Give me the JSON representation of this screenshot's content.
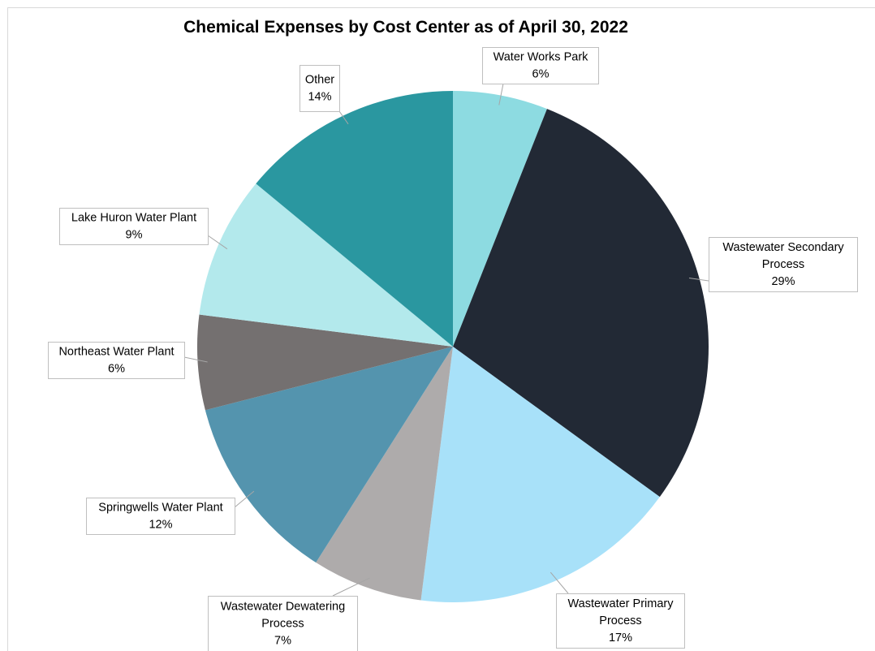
{
  "chart_data": {
    "type": "pie",
    "title": "Chemical Expenses by Cost Center as of April 30, 2022",
    "slices": [
      {
        "label": "Water Works Park",
        "label_lines": [
          "Water Works Park"
        ],
        "value": 6,
        "value_label": "6%",
        "color": "#8ddbe1"
      },
      {
        "label": "Wastewater Secondary Process",
        "label_lines": [
          "Wastewater Secondary",
          "Process"
        ],
        "value": 29,
        "value_label": "29%",
        "color": "#222935"
      },
      {
        "label": "Wastewater Primary Process",
        "label_lines": [
          "Wastewater Primary",
          "Process"
        ],
        "value": 17,
        "value_label": "17%",
        "color": "#a8e1f9"
      },
      {
        "label": "Wastewater Dewatering Process",
        "label_lines": [
          "Wastewater Dewatering",
          "Process"
        ],
        "value": 7,
        "value_label": "7%",
        "color": "#aeabab"
      },
      {
        "label": "Springwells Water Plant",
        "label_lines": [
          "Springwells Water Plant"
        ],
        "value": 12,
        "value_label": "12%",
        "color": "#5494ae"
      },
      {
        "label": "Northeast Water Plant",
        "label_lines": [
          "Northeast Water Plant"
        ],
        "value": 6,
        "value_label": "6%",
        "color": "#747070"
      },
      {
        "label": "Lake Huron Water Plant",
        "label_lines": [
          "Lake Huron Water Plant"
        ],
        "value": 9,
        "value_label": "9%",
        "color": "#b3e9ec"
      },
      {
        "label": "Other",
        "label_lines": [
          "Other"
        ],
        "value": 14,
        "value_label": "14%",
        "color": "#2a97a0"
      }
    ],
    "legend": "none",
    "data_labels": "outside-with-leader-lines"
  }
}
